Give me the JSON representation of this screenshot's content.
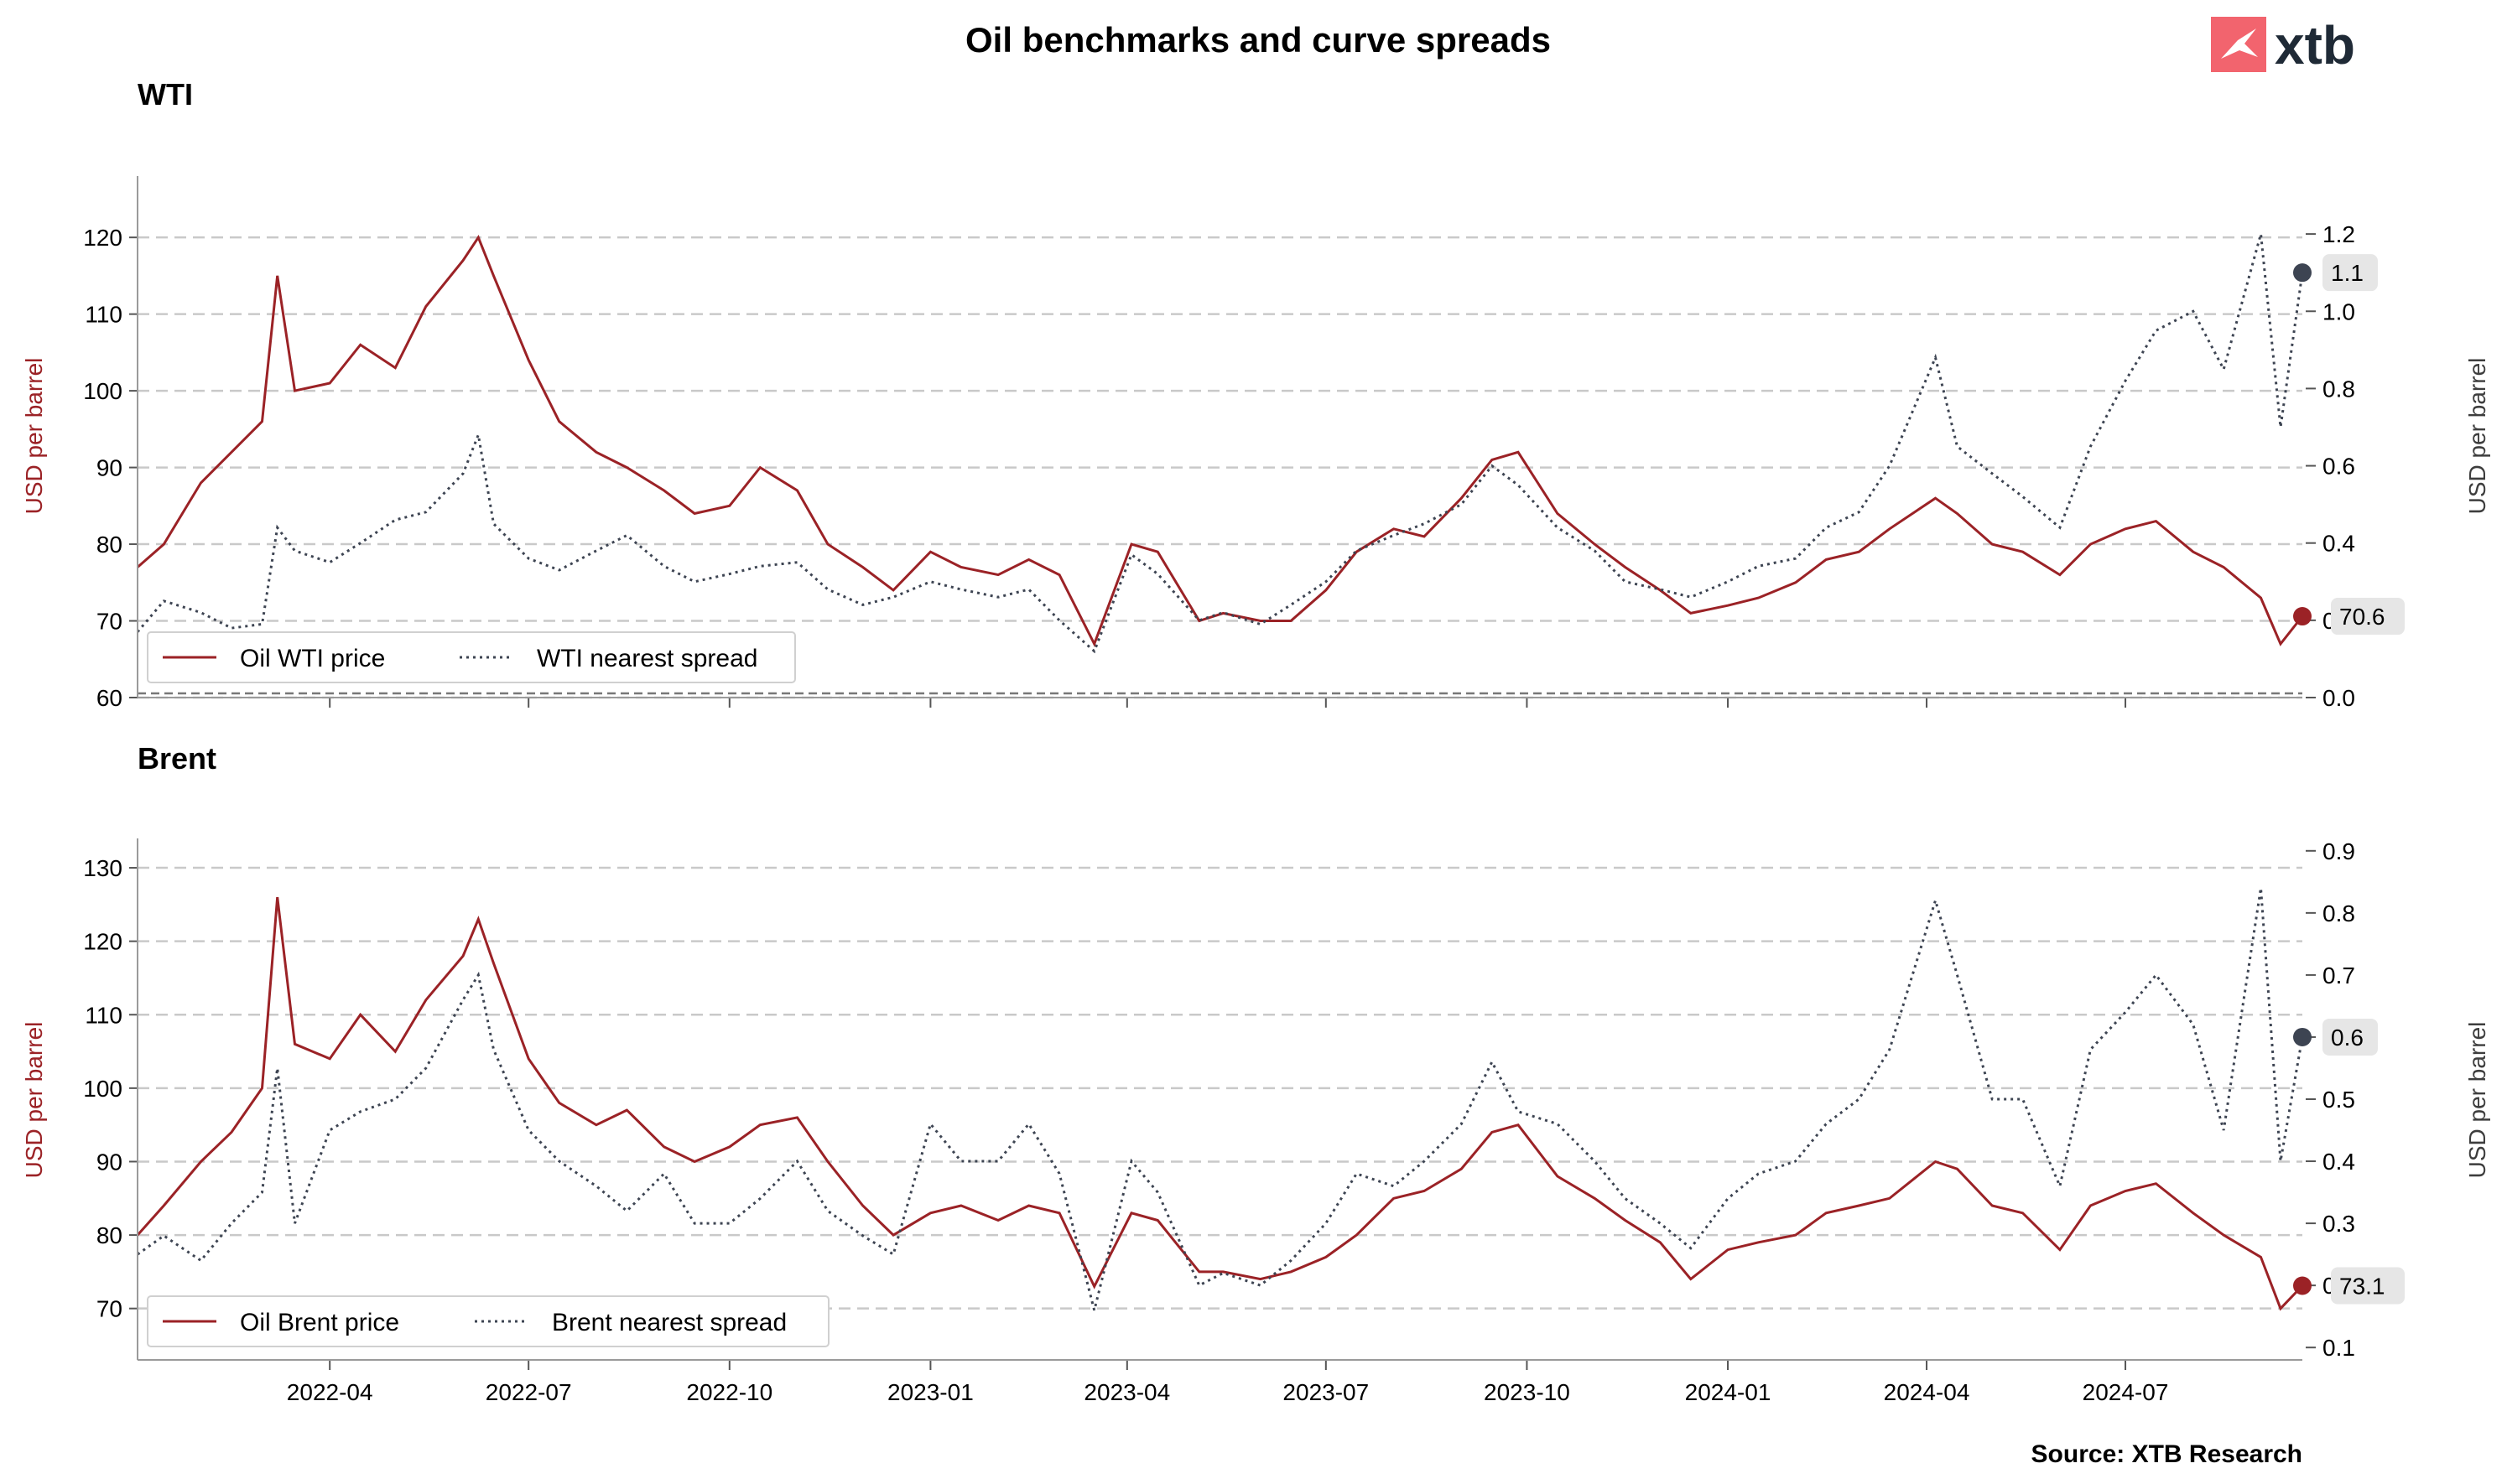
{
  "title": "Oil benchmarks and curve spreads",
  "source": "Source: XTB Research",
  "logo": {
    "text": "xtb",
    "mark_color": "#f2646e",
    "icon": "xtb-x-mark"
  },
  "colors": {
    "price": "#9b2226",
    "spread": "#3d4452",
    "grid": "#c9c9c9",
    "badge_bg": "#e6e6e6"
  },
  "x_ticks": [
    "2022-04",
    "2022-07",
    "2022-10",
    "2023-01",
    "2023-04",
    "2023-07",
    "2023-10",
    "2024-01",
    "2024-04",
    "2024-07"
  ],
  "chart_data": [
    {
      "type": "line",
      "title": "WTI",
      "ylabel_left": "USD per barrel",
      "ylabel_right": "USD per barrel",
      "ylim_left": [
        60,
        128
      ],
      "ylim_right": [
        0,
        1.35
      ],
      "yticks_left": [
        60,
        70,
        80,
        90,
        100,
        110,
        120
      ],
      "yticks_right": [
        0.0,
        0.2,
        0.4,
        0.6,
        0.8,
        1.0,
        1.2
      ],
      "grid": "horizontal dashed",
      "legend": "bottom-left",
      "x": [
        "2022-01-03",
        "2022-01-15",
        "2022-02-01",
        "2022-02-15",
        "2022-03-01",
        "2022-03-08",
        "2022-03-16",
        "2022-04-01",
        "2022-04-15",
        "2022-05-01",
        "2022-05-15",
        "2022-06-01",
        "2022-06-08",
        "2022-06-15",
        "2022-07-01",
        "2022-07-15",
        "2022-08-01",
        "2022-08-15",
        "2022-09-01",
        "2022-09-15",
        "2022-10-01",
        "2022-10-15",
        "2022-11-01",
        "2022-11-15",
        "2022-12-01",
        "2022-12-15",
        "2023-01-01",
        "2023-01-15",
        "2023-02-01",
        "2023-02-15",
        "2023-03-01",
        "2023-03-17",
        "2023-04-03",
        "2023-04-15",
        "2023-05-04",
        "2023-05-15",
        "2023-06-01",
        "2023-06-15",
        "2023-07-01",
        "2023-07-15",
        "2023-08-01",
        "2023-08-15",
        "2023-09-01",
        "2023-09-15",
        "2023-09-27",
        "2023-10-15",
        "2023-11-01",
        "2023-11-15",
        "2023-12-01",
        "2023-12-15",
        "2024-01-01",
        "2024-01-15",
        "2024-02-01",
        "2024-02-15",
        "2024-03-01",
        "2024-03-15",
        "2024-04-05",
        "2024-04-15",
        "2024-05-01",
        "2024-05-15",
        "2024-06-01",
        "2024-06-15",
        "2024-07-01",
        "2024-07-15",
        "2024-08-01",
        "2024-08-15",
        "2024-09-01",
        "2024-09-10",
        "2024-09-20"
      ],
      "series": [
        {
          "name": "Oil WTI price",
          "style": "solid",
          "values": [
            77,
            80,
            88,
            92,
            96,
            115,
            100,
            101,
            106,
            103,
            111,
            117,
            120,
            115,
            104,
            96,
            92,
            90,
            87,
            84,
            85,
            90,
            87,
            80,
            77,
            74,
            79,
            77,
            76,
            78,
            76,
            67,
            80,
            79,
            70,
            71,
            70,
            70,
            74,
            79,
            82,
            81,
            86,
            91,
            92,
            84,
            80,
            77,
            74,
            71,
            72,
            73,
            75,
            78,
            79,
            82,
            86,
            84,
            80,
            79,
            76,
            80,
            82,
            83,
            79,
            77,
            73,
            67,
            70.6
          ]
        },
        {
          "name": "WTI nearest spread",
          "style": "dotted",
          "values": [
            0.17,
            0.25,
            0.22,
            0.18,
            0.19,
            0.44,
            0.38,
            0.35,
            0.4,
            0.46,
            0.48,
            0.58,
            0.68,
            0.45,
            0.36,
            0.33,
            0.38,
            0.42,
            0.34,
            0.3,
            0.32,
            0.34,
            0.35,
            0.28,
            0.24,
            0.26,
            0.3,
            0.28,
            0.26,
            0.28,
            0.2,
            0.12,
            0.37,
            0.32,
            0.2,
            0.22,
            0.19,
            0.24,
            0.3,
            0.38,
            0.42,
            0.45,
            0.5,
            0.6,
            0.55,
            0.44,
            0.38,
            0.3,
            0.28,
            0.26,
            0.3,
            0.34,
            0.36,
            0.44,
            0.48,
            0.6,
            0.88,
            0.65,
            0.58,
            0.52,
            0.44,
            0.65,
            0.82,
            0.95,
            1.0,
            0.85,
            1.2,
            0.7,
            1.1
          ]
        }
      ],
      "end_labels": {
        "price": "70.6",
        "spread": "1.1"
      }
    },
    {
      "type": "line",
      "title": "Brent",
      "ylabel_left": "USD per barrel",
      "ylabel_right": "USD per barrel",
      "ylim_left": [
        63,
        134
      ],
      "ylim_right": [
        0.08,
        0.92
      ],
      "yticks_left": [
        70,
        80,
        90,
        100,
        110,
        120,
        130
      ],
      "yticks_right": [
        0.1,
        0.2,
        0.3,
        0.4,
        0.5,
        0.6,
        0.7,
        0.8,
        0.9
      ],
      "grid": "horizontal dashed",
      "legend": "bottom-left",
      "x": [
        "2022-01-03",
        "2022-01-15",
        "2022-02-01",
        "2022-02-15",
        "2022-03-01",
        "2022-03-08",
        "2022-03-16",
        "2022-04-01",
        "2022-04-15",
        "2022-05-01",
        "2022-05-15",
        "2022-06-01",
        "2022-06-08",
        "2022-06-15",
        "2022-07-01",
        "2022-07-15",
        "2022-08-01",
        "2022-08-15",
        "2022-09-01",
        "2022-09-15",
        "2022-10-01",
        "2022-10-15",
        "2022-11-01",
        "2022-11-15",
        "2022-12-01",
        "2022-12-15",
        "2023-01-01",
        "2023-01-15",
        "2023-02-01",
        "2023-02-15",
        "2023-03-01",
        "2023-03-17",
        "2023-04-03",
        "2023-04-15",
        "2023-05-04",
        "2023-05-15",
        "2023-06-01",
        "2023-06-15",
        "2023-07-01",
        "2023-07-15",
        "2023-08-01",
        "2023-08-15",
        "2023-09-01",
        "2023-09-15",
        "2023-09-27",
        "2023-10-15",
        "2023-11-01",
        "2023-11-15",
        "2023-12-01",
        "2023-12-15",
        "2024-01-01",
        "2024-01-15",
        "2024-02-01",
        "2024-02-15",
        "2024-03-01",
        "2024-03-15",
        "2024-04-05",
        "2024-04-15",
        "2024-05-01",
        "2024-05-15",
        "2024-06-01",
        "2024-06-15",
        "2024-07-01",
        "2024-07-15",
        "2024-08-01",
        "2024-08-15",
        "2024-09-01",
        "2024-09-10",
        "2024-09-20"
      ],
      "series": [
        {
          "name": "Oil Brent price",
          "style": "solid",
          "values": [
            80,
            84,
            90,
            94,
            100,
            126,
            106,
            104,
            110,
            105,
            112,
            118,
            123,
            117,
            104,
            98,
            95,
            97,
            92,
            90,
            92,
            95,
            96,
            90,
            84,
            80,
            83,
            84,
            82,
            84,
            83,
            73,
            83,
            82,
            75,
            75,
            74,
            75,
            77,
            80,
            85,
            86,
            89,
            94,
            95,
            88,
            85,
            82,
            79,
            74,
            78,
            79,
            80,
            83,
            84,
            85,
            90,
            89,
            84,
            83,
            78,
            84,
            86,
            87,
            83,
            80,
            77,
            70,
            73.1
          ]
        },
        {
          "name": "Brent nearest spread",
          "style": "dotted",
          "values": [
            0.25,
            0.28,
            0.24,
            0.3,
            0.35,
            0.55,
            0.3,
            0.45,
            0.48,
            0.5,
            0.55,
            0.66,
            0.7,
            0.58,
            0.45,
            0.4,
            0.36,
            0.32,
            0.38,
            0.3,
            0.3,
            0.34,
            0.4,
            0.32,
            0.28,
            0.25,
            0.46,
            0.4,
            0.4,
            0.46,
            0.38,
            0.16,
            0.4,
            0.35,
            0.2,
            0.22,
            0.2,
            0.24,
            0.3,
            0.38,
            0.36,
            0.4,
            0.46,
            0.56,
            0.48,
            0.46,
            0.4,
            0.34,
            0.3,
            0.26,
            0.34,
            0.38,
            0.4,
            0.46,
            0.5,
            0.58,
            0.82,
            0.7,
            0.5,
            0.5,
            0.36,
            0.58,
            0.64,
            0.7,
            0.62,
            0.45,
            0.84,
            0.4,
            0.6
          ]
        }
      ],
      "end_labels": {
        "price": "73.1",
        "spread": "0.6"
      }
    }
  ]
}
